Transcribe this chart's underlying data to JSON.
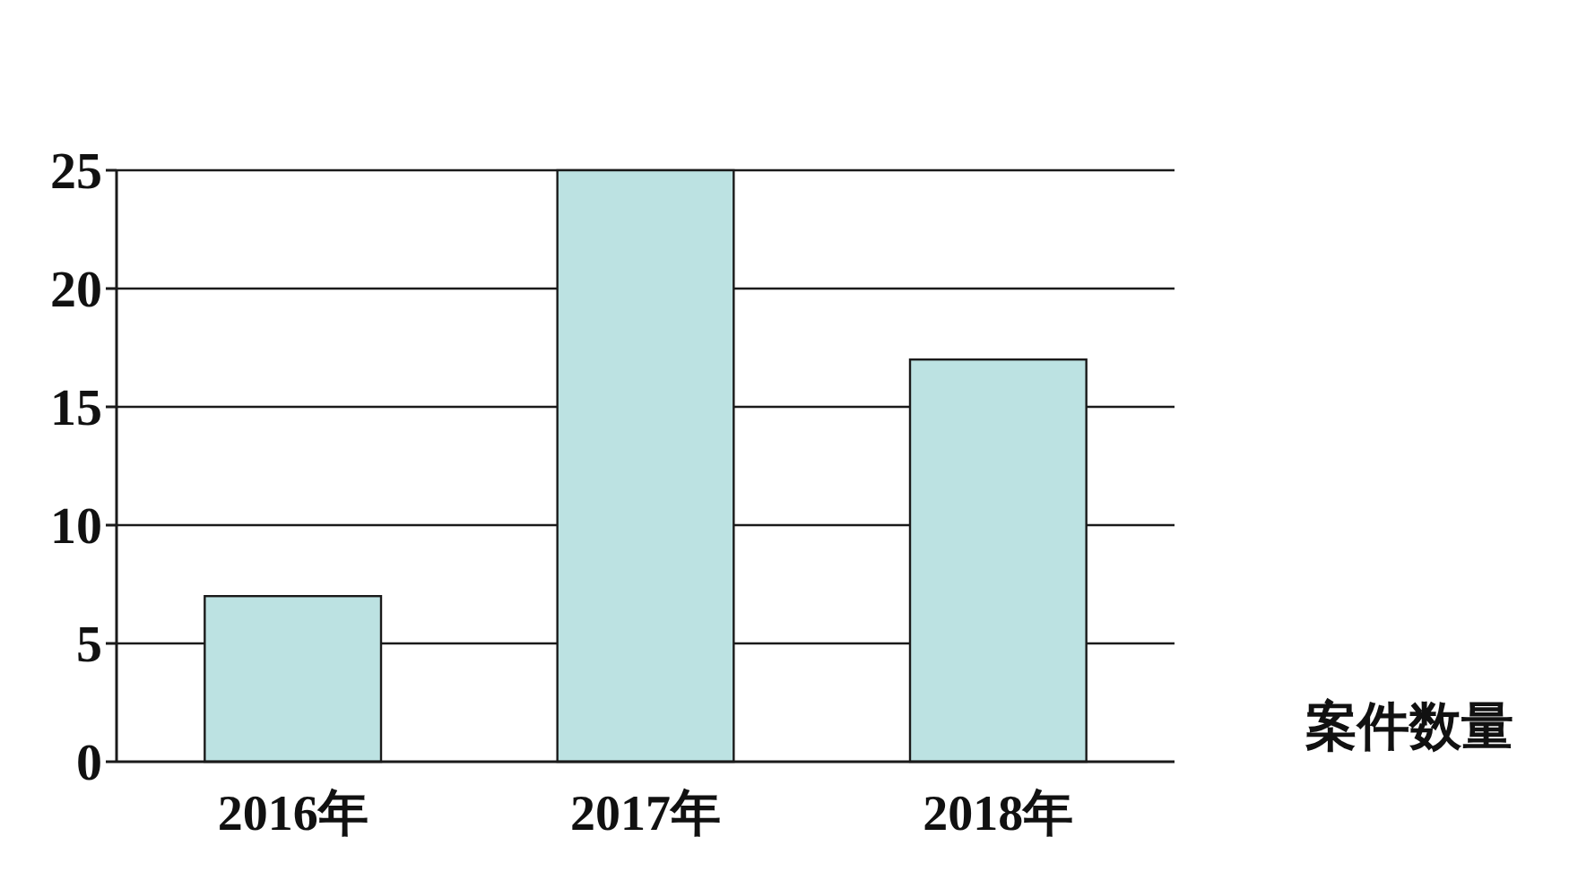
{
  "chart_data": {
    "type": "bar",
    "categories": [
      "2016年",
      "2017年",
      "2018年"
    ],
    "series": [
      {
        "name": "案件数量",
        "color": "#bce2e2",
        "values": [
          7,
          25,
          17
        ]
      }
    ],
    "ylim": [
      0,
      25
    ],
    "yticks": [
      0,
      5,
      10,
      15,
      20,
      25
    ],
    "grid": "y"
  }
}
